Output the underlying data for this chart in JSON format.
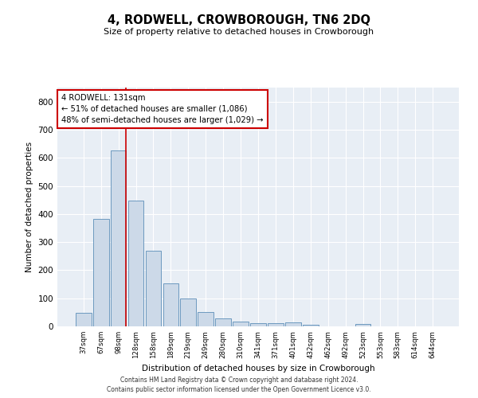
{
  "title": "4, RODWELL, CROWBOROUGH, TN6 2DQ",
  "subtitle": "Size of property relative to detached houses in Crowborough",
  "xlabel": "Distribution of detached houses by size in Crowborough",
  "ylabel": "Number of detached properties",
  "categories": [
    "37sqm",
    "67sqm",
    "98sqm",
    "128sqm",
    "158sqm",
    "189sqm",
    "219sqm",
    "249sqm",
    "280sqm",
    "310sqm",
    "341sqm",
    "371sqm",
    "401sqm",
    "432sqm",
    "462sqm",
    "492sqm",
    "523sqm",
    "553sqm",
    "583sqm",
    "614sqm",
    "644sqm"
  ],
  "values": [
    47,
    383,
    625,
    447,
    268,
    153,
    98,
    52,
    28,
    17,
    11,
    10,
    13,
    7,
    0,
    0,
    8,
    0,
    0,
    0,
    0
  ],
  "bar_color": "#ccd9e8",
  "bar_edge_color": "#5b8db8",
  "vline_color": "#cc0000",
  "vline_bar_index": 2,
  "annotation_text": "4 RODWELL: 131sqm\n← 51% of detached houses are smaller (1,086)\n48% of semi-detached houses are larger (1,029) →",
  "annotation_box_facecolor": "white",
  "annotation_box_edgecolor": "#cc0000",
  "ylim": [
    0,
    850
  ],
  "yticks": [
    0,
    100,
    200,
    300,
    400,
    500,
    600,
    700,
    800
  ],
  "background_color": "#e8eef5",
  "grid_color": "white",
  "footer": "Contains HM Land Registry data © Crown copyright and database right 2024.\nContains public sector information licensed under the Open Government Licence v3.0."
}
